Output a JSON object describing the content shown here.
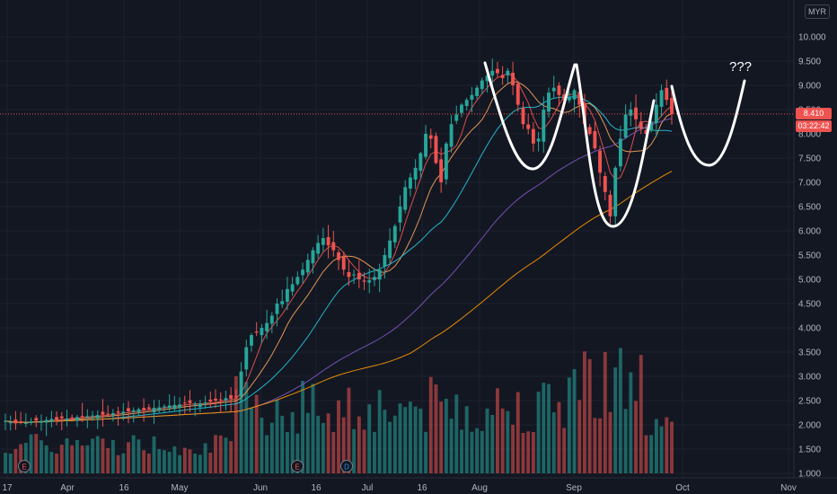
{
  "chart_data": {
    "type": "candlestick",
    "currency": "MYR",
    "last_price_label": "8.410",
    "countdown_label": "03:22:42",
    "ylim": [
      0.9,
      10.4
    ],
    "yticks": [
      "10.000",
      "9.500",
      "9.000",
      "8.500",
      "8.000",
      "7.500",
      "7.000",
      "6.500",
      "6.000",
      "5.500",
      "5.000",
      "4.500",
      "4.000",
      "3.500",
      "3.000",
      "2.500",
      "2.000",
      "1.500",
      "1.000"
    ],
    "xticks": [
      "17",
      "Apr",
      "16",
      "May",
      "Jun",
      "16",
      "Jul",
      "16",
      "Aug",
      "Sep",
      "Oct",
      "Nov"
    ],
    "event_markers": [
      "E",
      "E",
      "D"
    ],
    "annotation": "???",
    "closes": [
      2.08,
      2.05,
      2.03,
      2.06,
      2.04,
      2.07,
      2.09,
      2.08,
      2.1,
      2.12,
      2.11,
      2.14,
      2.13,
      2.15,
      2.16,
      2.17,
      2.18,
      2.19,
      2.2,
      2.21,
      2.22,
      2.24,
      2.25,
      2.27,
      2.28,
      2.3,
      2.32,
      2.31,
      2.33,
      2.35,
      2.36,
      2.38,
      2.4,
      2.41,
      2.42,
      2.44,
      2.45,
      2.43,
      2.44,
      2.46,
      2.48,
      2.5,
      2.52,
      2.55,
      2.54,
      2.58,
      3.1,
      3.6,
      3.85,
      3.9,
      4.0,
      4.1,
      4.25,
      4.5,
      4.55,
      4.8,
      4.9,
      5.05,
      5.2,
      5.4,
      5.6,
      5.75,
      5.85,
      5.7,
      5.6,
      5.4,
      5.2,
      5.05,
      5.1,
      5.0,
      4.95,
      4.98,
      5.05,
      5.2,
      5.5,
      5.8,
      6.1,
      6.5,
      6.9,
      7.1,
      7.3,
      7.6,
      8.0,
      7.9,
      7.4,
      7.0,
      7.8,
      8.2,
      8.4,
      8.6,
      8.7,
      8.8,
      8.95,
      9.1,
      9.2,
      9.3,
      9.25,
      9.15,
      9.3,
      9.0,
      8.6,
      8.2,
      8.1,
      7.8,
      7.9,
      8.5,
      8.85,
      8.95,
      8.8,
      8.7,
      8.75,
      8.9,
      8.6,
      8.2,
      8.0,
      7.7,
      7.2,
      6.8,
      6.3,
      7.3,
      7.9,
      8.4,
      8.5,
      8.3,
      8.1,
      8.0,
      8.25,
      8.6,
      8.9,
      8.7,
      8.41
    ]
  }
}
